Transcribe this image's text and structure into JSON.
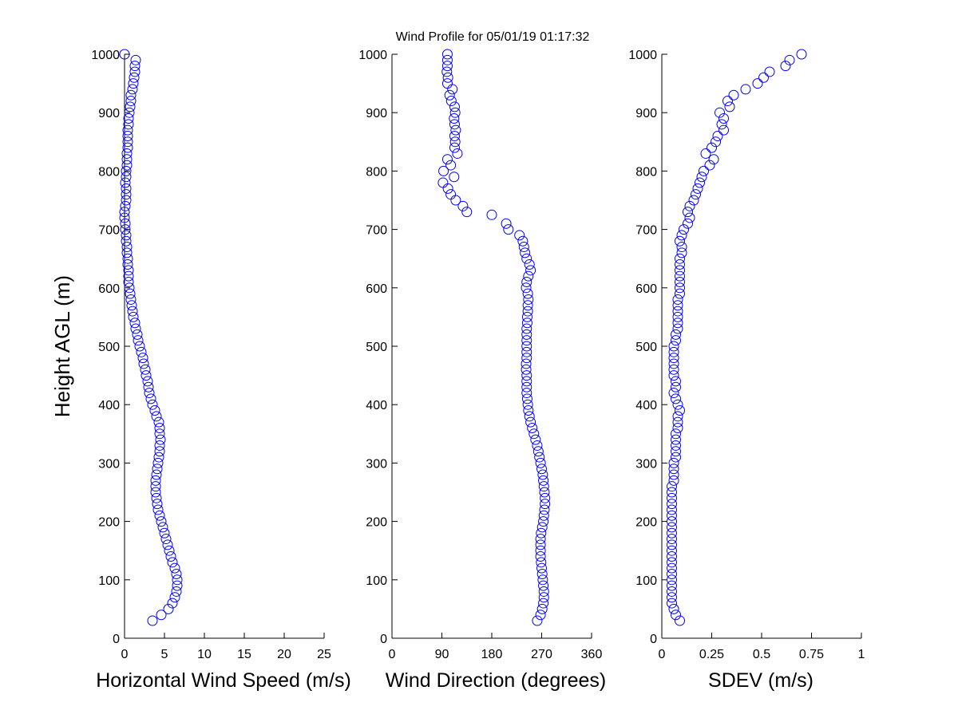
{
  "title": "Wind Profile for  05/01/19 01:17:32",
  "colors": {
    "marker": "#0000ff",
    "axis": "#000000"
  },
  "chart_data": [
    {
      "type": "scatter",
      "marker": "circle-open",
      "xlabel": "Horizontal Wind Speed (m/s)",
      "ylabel": "Height AGL (m)",
      "xlim": [
        0,
        25
      ],
      "ylim": [
        0,
        1000
      ],
      "xticks": [
        "0",
        "5",
        "10",
        "15",
        "20",
        "25"
      ],
      "yticks": [
        "0",
        "100",
        "200",
        "300",
        "400",
        "500",
        "600",
        "700",
        "800",
        "900",
        "1000"
      ],
      "x": [
        3.5,
        4.6,
        5.5,
        6.0,
        6.3,
        6.5,
        6.6,
        6.6,
        6.5,
        6.3,
        6.0,
        5.8,
        5.6,
        5.4,
        5.2,
        5.0,
        4.8,
        4.6,
        4.4,
        4.2,
        4.1,
        4.0,
        3.9,
        3.9,
        3.9,
        4.0,
        4.1,
        4.2,
        4.3,
        4.4,
        4.4,
        4.5,
        4.4,
        4.4,
        4.3,
        4.0,
        3.8,
        3.5,
        3.3,
        3.1,
        3.0,
        2.9,
        2.7,
        2.6,
        2.4,
        2.3,
        2.1,
        1.9,
        1.7,
        1.6,
        1.4,
        1.3,
        1.1,
        1.0,
        0.9,
        0.8,
        0.7,
        0.6,
        0.5,
        0.5,
        0.5,
        0.4,
        0.4,
        0.3,
        0.3,
        0.2,
        0.2,
        0.1,
        0.1,
        0.0,
        0.0,
        0.1,
        0.2,
        0.2,
        0.2,
        0.1,
        0.2,
        0.2,
        0.3,
        0.3,
        0.3,
        0.4,
        0.4,
        0.4,
        0.4,
        0.5,
        0.5,
        0.6,
        0.7,
        0.8,
        0.8,
        1.0,
        1.1,
        1.2,
        1.3,
        1.3,
        1.4,
        0.0
      ],
      "y": [
        30,
        40,
        50,
        60,
        70,
        80,
        90,
        100,
        110,
        120,
        130,
        140,
        150,
        160,
        170,
        180,
        190,
        200,
        210,
        220,
        230,
        240,
        250,
        260,
        270,
        280,
        290,
        300,
        310,
        320,
        330,
        340,
        350,
        360,
        370,
        380,
        390,
        400,
        410,
        420,
        430,
        440,
        450,
        460,
        470,
        480,
        490,
        500,
        510,
        520,
        530,
        540,
        550,
        560,
        570,
        580,
        590,
        600,
        610,
        620,
        630,
        640,
        650,
        660,
        670,
        680,
        690,
        700,
        710,
        720,
        730,
        740,
        750,
        760,
        770,
        780,
        790,
        800,
        810,
        820,
        830,
        840,
        850,
        860,
        870,
        880,
        890,
        900,
        910,
        920,
        930,
        940,
        950,
        960,
        970,
        980,
        990,
        1000
      ]
    },
    {
      "type": "scatter",
      "marker": "circle-open",
      "xlabel": "Wind Direction (degrees)",
      "xlim": [
        0,
        360
      ],
      "ylim": [
        0,
        1000
      ],
      "xticks": [
        "0",
        "90",
        "180",
        "270",
        "360"
      ],
      "yticks": [
        "0",
        "100",
        "200",
        "300",
        "400",
        "500",
        "600",
        "700",
        "800",
        "900",
        "1000"
      ],
      "x": [
        262,
        268,
        271,
        273,
        274,
        274,
        273,
        272,
        271,
        270,
        269,
        268,
        268,
        268,
        268,
        269,
        271,
        273,
        274,
        275,
        276,
        276,
        275,
        274,
        273,
        272,
        270,
        268,
        266,
        264,
        262,
        259,
        256,
        253,
        250,
        248,
        246,
        245,
        244,
        243,
        243,
        243,
        243,
        242,
        242,
        243,
        243,
        243,
        243,
        243,
        243,
        244,
        244,
        245,
        245,
        246,
        245,
        242,
        243,
        246,
        250,
        248,
        243,
        240,
        238,
        236,
        230,
        210,
        206,
        180,
        135,
        128,
        115,
        106,
        101,
        92,
        112,
        93,
        106,
        100,
        118,
        113,
        114,
        113,
        115,
        113,
        112,
        114,
        113,
        107,
        104,
        109,
        100,
        101,
        99,
        100,
        100,
        100
      ],
      "y": [
        30,
        40,
        50,
        60,
        70,
        80,
        90,
        100,
        110,
        120,
        130,
        140,
        150,
        160,
        170,
        180,
        190,
        200,
        210,
        220,
        230,
        240,
        250,
        260,
        270,
        280,
        290,
        300,
        310,
        320,
        330,
        340,
        350,
        360,
        370,
        380,
        390,
        400,
        410,
        420,
        430,
        440,
        450,
        460,
        470,
        480,
        490,
        500,
        510,
        520,
        530,
        540,
        550,
        560,
        570,
        580,
        590,
        600,
        610,
        620,
        630,
        640,
        650,
        660,
        670,
        680,
        690,
        700,
        710,
        725,
        730,
        740,
        750,
        760,
        770,
        780,
        790,
        800,
        810,
        820,
        830,
        840,
        850,
        860,
        870,
        880,
        890,
        900,
        910,
        920,
        930,
        940,
        950,
        960,
        970,
        980,
        990,
        1000
      ]
    },
    {
      "type": "scatter",
      "marker": "circle-open",
      "xlabel": "SDEV  (m/s)",
      "xlim": [
        0,
        1
      ],
      "ylim": [
        0,
        1000
      ],
      "xticks": [
        "0",
        "0.25",
        "0.5",
        "0.75",
        "1"
      ],
      "yticks": [
        "0",
        "100",
        "200",
        "300",
        "400",
        "500",
        "600",
        "700",
        "800",
        "900",
        "1000"
      ],
      "x": [
        0.09,
        0.07,
        0.06,
        0.05,
        0.05,
        0.05,
        0.05,
        0.05,
        0.05,
        0.05,
        0.05,
        0.05,
        0.05,
        0.05,
        0.05,
        0.05,
        0.05,
        0.05,
        0.05,
        0.05,
        0.05,
        0.05,
        0.05,
        0.05,
        0.06,
        0.06,
        0.06,
        0.06,
        0.07,
        0.07,
        0.07,
        0.07,
        0.07,
        0.08,
        0.08,
        0.08,
        0.09,
        0.08,
        0.07,
        0.06,
        0.07,
        0.07,
        0.06,
        0.06,
        0.06,
        0.06,
        0.06,
        0.06,
        0.07,
        0.07,
        0.08,
        0.08,
        0.08,
        0.08,
        0.08,
        0.08,
        0.09,
        0.09,
        0.09,
        0.09,
        0.09,
        0.09,
        0.09,
        0.1,
        0.1,
        0.09,
        0.1,
        0.11,
        0.13,
        0.14,
        0.13,
        0.14,
        0.16,
        0.17,
        0.18,
        0.19,
        0.2,
        0.21,
        0.24,
        0.26,
        0.22,
        0.25,
        0.27,
        0.28,
        0.31,
        0.3,
        0.31,
        0.29,
        0.34,
        0.33,
        0.36,
        0.42,
        0.48,
        0.51,
        0.54,
        0.62,
        0.64,
        0.7
      ],
      "y": [
        30,
        40,
        50,
        60,
        70,
        80,
        90,
        100,
        110,
        120,
        130,
        140,
        150,
        160,
        170,
        180,
        190,
        200,
        210,
        220,
        230,
        240,
        250,
        260,
        270,
        280,
        290,
        300,
        310,
        320,
        330,
        340,
        350,
        360,
        370,
        380,
        390,
        400,
        410,
        420,
        430,
        440,
        450,
        460,
        470,
        480,
        490,
        500,
        510,
        520,
        530,
        540,
        550,
        560,
        570,
        580,
        590,
        600,
        610,
        620,
        630,
        640,
        650,
        660,
        670,
        680,
        690,
        700,
        710,
        720,
        730,
        740,
        750,
        760,
        770,
        780,
        790,
        800,
        810,
        820,
        830,
        840,
        850,
        860,
        870,
        880,
        890,
        900,
        910,
        920,
        930,
        940,
        950,
        960,
        970,
        980,
        990,
        1000
      ]
    }
  ]
}
